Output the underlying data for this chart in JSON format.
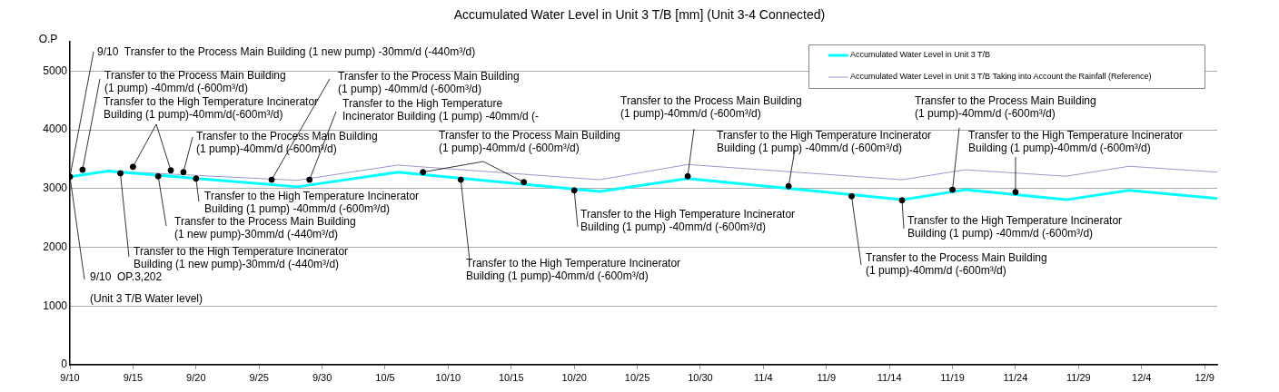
{
  "chart_data": {
    "type": "line",
    "title": "Accumulated Water Level in Unit 3 T/B [mm] (Unit 3-4 Connected)",
    "ylabel": "O.P",
    "xlim": [
      "--09-10",
      "--12-10"
    ],
    "xticks": [
      {
        "value": "--09-10",
        "label": "9/10"
      },
      {
        "value": "--09-15",
        "label": "9/15"
      },
      {
        "value": "--09-20",
        "label": "9/20"
      },
      {
        "value": "--09-25",
        "label": "9/25"
      },
      {
        "value": "--09-30",
        "label": "9/30"
      },
      {
        "value": "--10-05",
        "label": "10/5"
      },
      {
        "value": "--10-10",
        "label": "10/10"
      },
      {
        "value": "--10-15",
        "label": "10/15"
      },
      {
        "value": "--10-20",
        "label": "10/20"
      },
      {
        "value": "--10-25",
        "label": "10/25"
      },
      {
        "value": "--10-30",
        "label": "10/30"
      },
      {
        "value": "--11-04",
        "label": "11/4"
      },
      {
        "value": "--11-09",
        "label": "11/9"
      },
      {
        "value": "--11-14",
        "label": "11/14"
      },
      {
        "value": "--11-19",
        "label": "11/19"
      },
      {
        "value": "--11-24",
        "label": "11/24"
      },
      {
        "value": "--11-29",
        "label": "11/29"
      },
      {
        "value": "--12-04",
        "label": "12/4"
      },
      {
        "value": "--12-09",
        "label": "12/9"
      }
    ],
    "ylim": [
      0,
      5500
    ],
    "yticks": [
      0,
      1000,
      2000,
      3000,
      4000,
      5000
    ],
    "grid": "y",
    "legend": "top right",
    "series": [
      {
        "name": "Accumulated Water Level in Unit 3 T/B",
        "color": "#00ffff",
        "x": [
          "--09-10",
          "--09-13",
          "--09-28",
          "--10-06",
          "--10-22",
          "--10-29",
          "--11-15",
          "--11-20",
          "--11-28",
          "--12-03",
          "--12-10"
        ],
        "values": [
          3202,
          3300,
          3030,
          3280,
          2950,
          3170,
          2810,
          2980,
          2810,
          2970,
          2830
        ]
      },
      {
        "name": "Accumulated Water Level in Unit 3 T/B Taking into Account the Rainfall (Reference)",
        "color": "#9999cc",
        "x": [
          "--09-10",
          "--09-13",
          "--09-28",
          "--10-06",
          "--10-22",
          "--10-29",
          "--11-15",
          "--11-20",
          "--11-28",
          "--12-03",
          "--12-10"
        ],
        "values": [
          3202,
          3300,
          3140,
          3400,
          3150,
          3410,
          3150,
          3320,
          3210,
          3380,
          3280
        ]
      },
      {
        "type": "scatter",
        "marker": "circle",
        "color": "#000000",
        "x": [
          "--09-10",
          "--09-11",
          "--09-14",
          "--09-15",
          "--09-17",
          "--09-18",
          "--09-19",
          "--09-20",
          "--09-26",
          "--09-29",
          "--10-08",
          "--10-11",
          "--10-16",
          "--10-20",
          "--10-29",
          "--11-06",
          "--11-11",
          "--11-15",
          "--11-19",
          "--11-24"
        ],
        "values": [
          3202,
          3320,
          3260,
          3370,
          3210,
          3310,
          3280,
          3170,
          3150,
          3150,
          3280,
          3150,
          3110,
          2970,
          3210,
          3040,
          2870,
          2800,
          2980,
          2940
        ]
      }
    ],
    "annotations": [
      {
        "text": "9/10  Transfer to the Process Main Building (1 new pump) -30mm/d (-440m³/d)",
        "x": "--09-10",
        "y": 3202
      },
      {
        "text": "9/10  OP.3,202\n(Unit 3 T/B Water level)",
        "x": "--09-10",
        "y": 3202
      },
      {
        "text": "Transfer to the Process Main Building\n(1 pump) -40mm/d (-600m³/d)",
        "x": "--09-11",
        "y": 3320
      },
      {
        "text": "Transfer to the High Temperature Incinerator\nBuilding (1 pump)-40mm/d(-600m³/d)",
        "x": "--09-15",
        "y": 3370
      },
      {
        "text": "Transfer to the Process Main Building\n(1 pump)-40mm/d (-600m³/d)",
        "x": "--09-19",
        "y": 3280
      },
      {
        "text": "Transfer to the High Temperature Incinerator\nBuilding (1 pump) -40mm/d (-600m³/d)",
        "x": "--09-20",
        "y": 3170
      },
      {
        "text": "Transfer to the Process Main Building\n(1 new pump)-30mm/d (-440m³/d)",
        "x": "--09-17",
        "y": 3210
      },
      {
        "text": "Transfer to the High Temperature Incinerator\nBuilding (1 new pump)-30mm/d (-440m³/d)",
        "x": "--09-14",
        "y": 3260
      },
      {
        "text": "Transfer to the Process Main Building\n(1 pump) -40mm/d (-600m³/d)",
        "x": "--09-26",
        "y": 3150
      },
      {
        "text": "Transfer to the High Temperature\nIncinerator Building (1 pump) -40mm/d (-",
        "x": "--09-29",
        "y": 3150
      },
      {
        "text": "Transfer to the Process Main Building\n(1 pump)-40mm/d (-600m³/d)",
        "x": "--10-08",
        "y": 3280
      },
      {
        "text": "Transfer to the High Temperature Incinerator\nBuilding (1 pump)-40mm/d (-600m³/d)",
        "x": "--10-11",
        "y": 3150
      },
      {
        "text": "Transfer to the High Temperature Incinerator\nBuilding (1 pump) -40mm/d (-600m³/d)",
        "x": "--10-20",
        "y": 2970
      },
      {
        "text": "Transfer to the Process Main Building\n(1 pump)-40mm/d (-600m³/d)",
        "x": "--10-29",
        "y": 3210
      },
      {
        "text": "Transfer to the High Temperature Incinerator\nBuilding (1 pump) -40mm/d (-600m³/d)",
        "x": "--11-06",
        "y": 3040
      },
      {
        "text": "Transfer to the Process Main Building\n(1 pump)-40mm/d (-600m³/d)",
        "x": "--11-11",
        "y": 2870
      },
      {
        "text": "Transfer to the High Temperature Incinerator\nBuilding (1 pump) -40mm/d (-600m³/d)",
        "x": "--11-15",
        "y": 2800
      },
      {
        "text": "Transfer to the Process Main Building\n(1 pump)-40mm/d (-600m³/d)",
        "x": "--11-19",
        "y": 2980
      },
      {
        "text": "Transfer to the High Temperature Incinerator\nBuilding (1 pump)-40mm/d (-600m³/d)",
        "x": "--11-24",
        "y": 2940
      }
    ]
  }
}
